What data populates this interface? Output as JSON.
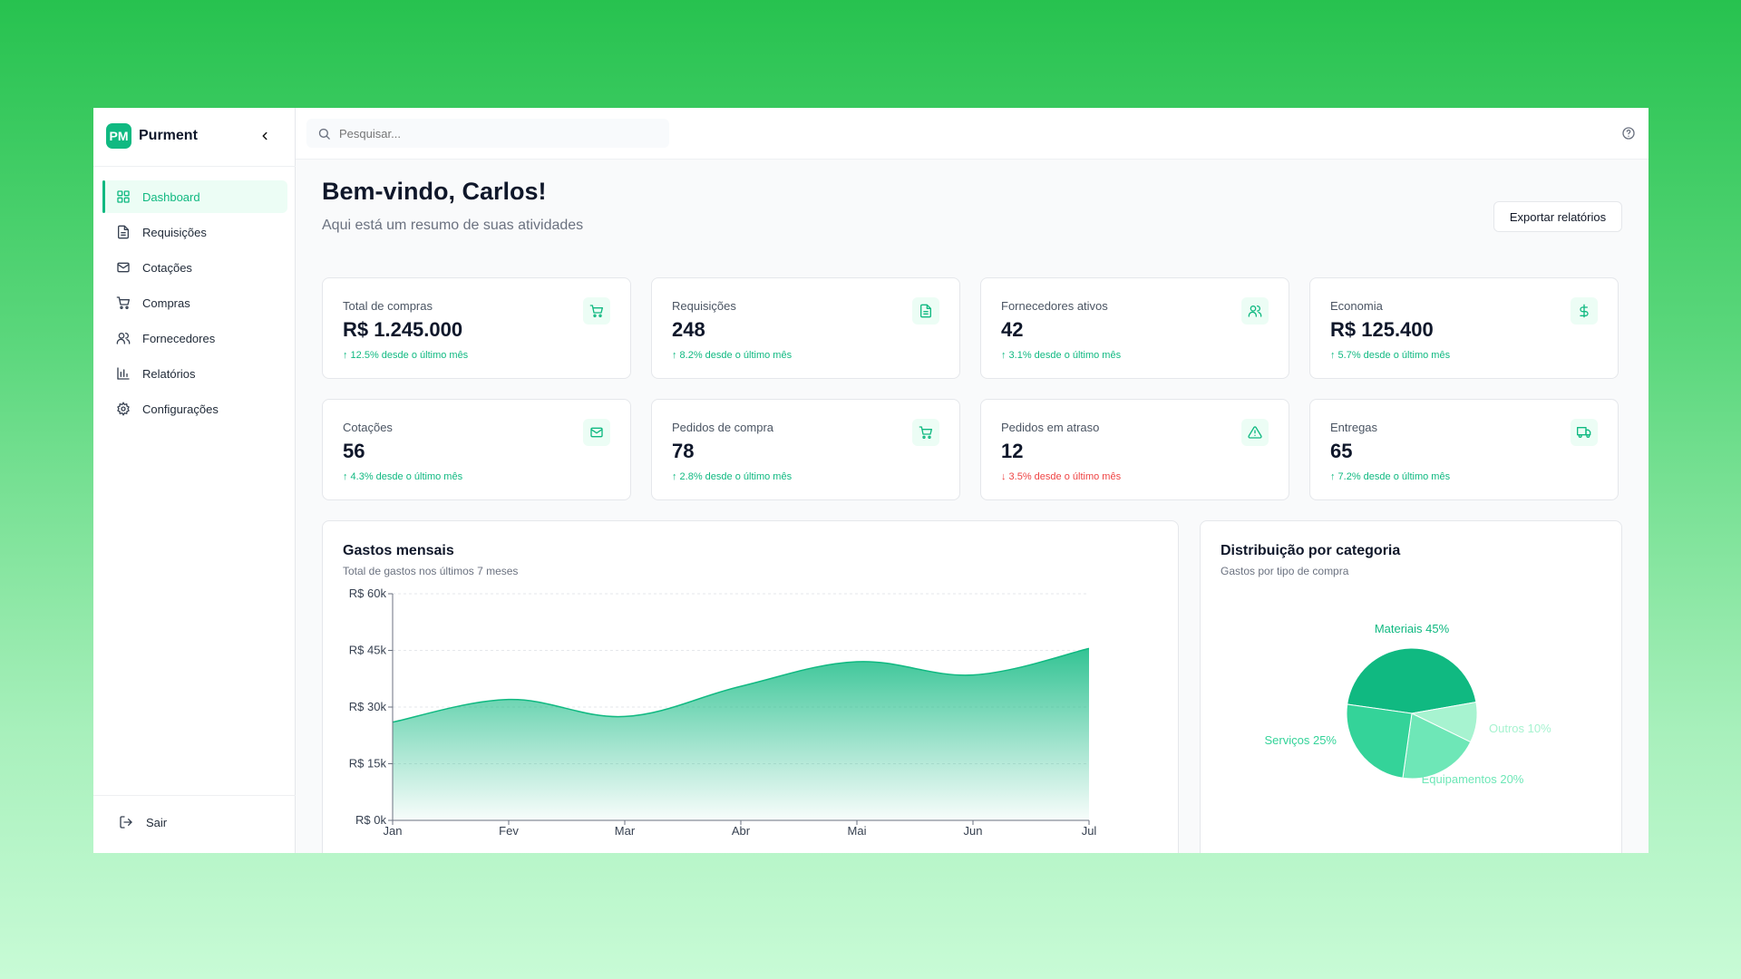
{
  "brand": {
    "logo": "PM",
    "name": "Purment"
  },
  "sidebar": {
    "items": [
      {
        "label": "Dashboard",
        "icon": "grid-icon",
        "active": true
      },
      {
        "label": "Requisições",
        "icon": "file-text-icon"
      },
      {
        "label": "Cotações",
        "icon": "mail-icon"
      },
      {
        "label": "Compras",
        "icon": "cart-icon"
      },
      {
        "label": "Fornecedores",
        "icon": "users-icon"
      },
      {
        "label": "Relatórios",
        "icon": "bar-chart-icon"
      },
      {
        "label": "Configurações",
        "icon": "gear-icon"
      }
    ],
    "logout_label": "Sair"
  },
  "topbar": {
    "search_placeholder": "Pesquisar..."
  },
  "header": {
    "title": "Bem-vindo, Carlos!",
    "subtitle": "Aqui está um resumo de suas atividades",
    "export_label": "Exportar relatórios"
  },
  "cards": [
    {
      "label": "Total de compras",
      "value": "R$ 1.245.000",
      "change": "↑ 12.5% desde o último mês",
      "trend": "up",
      "icon": "cart-icon"
    },
    {
      "label": "Requisições",
      "value": "248",
      "change": "↑ 8.2% desde o último mês",
      "trend": "up",
      "icon": "file-text-icon"
    },
    {
      "label": "Fornecedores ativos",
      "value": "42",
      "change": "↑ 3.1% desde o último mês",
      "trend": "up",
      "icon": "users-icon"
    },
    {
      "label": "Economia",
      "value": "R$ 125.400",
      "change": "↑ 5.7% desde o último mês",
      "trend": "up",
      "icon": "dollar-icon"
    },
    {
      "label": "Cotações",
      "value": "56",
      "change": "↑ 4.3% desde o último mês",
      "trend": "up",
      "icon": "mail-icon"
    },
    {
      "label": "Pedidos de compra",
      "value": "78",
      "change": "↑ 2.8% desde o último mês",
      "trend": "up",
      "icon": "cart-icon"
    },
    {
      "label": "Pedidos em atraso",
      "value": "12",
      "change": "↓ 3.5% desde o último mês",
      "trend": "down",
      "icon": "alert-triangle-icon"
    },
    {
      "label": "Entregas",
      "value": "65",
      "change": "↑ 7.2% desde o último mês",
      "trend": "up",
      "icon": "truck-icon"
    }
  ],
  "monthly": {
    "title": "Gastos mensais",
    "subtitle": "Total de gastos nos últimos 7 meses"
  },
  "category": {
    "title": "Distribuição por categoria",
    "subtitle": "Gastos por tipo de compra"
  },
  "colors": {
    "accent": "#10b981",
    "accent_light": "#ecfdf5",
    "down": "#ef4444"
  },
  "chart_data": [
    {
      "type": "area",
      "categories": [
        "Jan",
        "Fev",
        "Mar",
        "Abr",
        "Mai",
        "Jun",
        "Jul"
      ],
      "values": [
        26000,
        32000,
        27500,
        35500,
        42000,
        38500,
        45500
      ],
      "ylim": [
        0,
        60000
      ],
      "yticks": [
        0,
        15000,
        30000,
        45000,
        60000
      ],
      "ytick_labels": [
        "R$ 0k",
        "R$ 15k",
        "R$ 30k",
        "R$ 45k",
        "R$ 60k"
      ],
      "grid": true
    },
    {
      "type": "pie",
      "slices": [
        {
          "label": "Materiais 45%",
          "value": 45,
          "color": "#10b981"
        },
        {
          "label": "Outros 10%",
          "value": 10,
          "color": "#a7f3d0"
        },
        {
          "label": "Equipamentos 20%",
          "value": 20,
          "color": "#6ee7b7"
        },
        {
          "label": "Serviços 25%",
          "value": 25,
          "color": "#34d399"
        }
      ]
    }
  ]
}
